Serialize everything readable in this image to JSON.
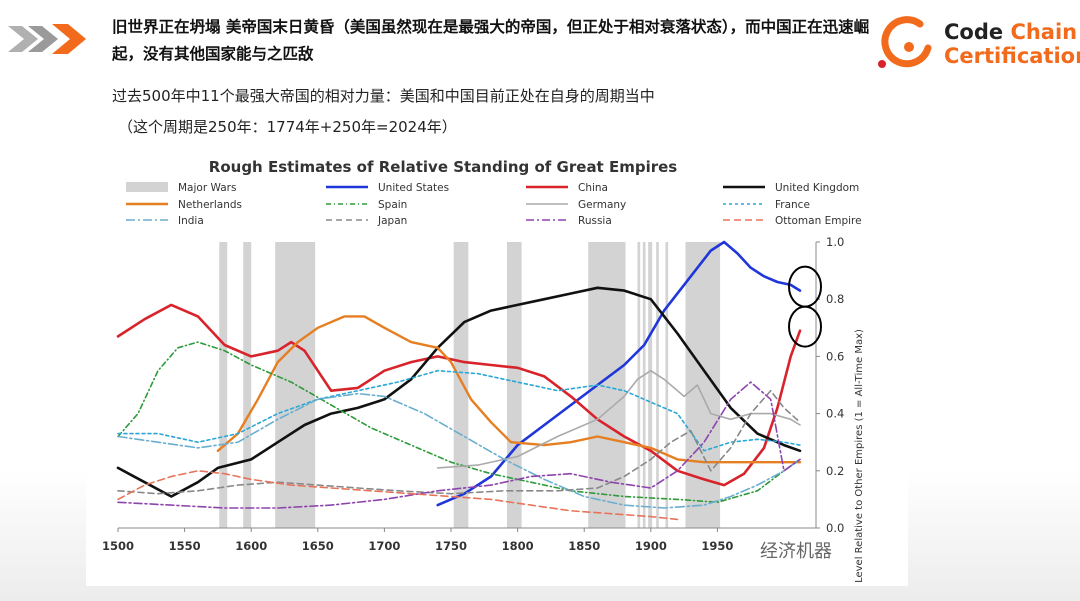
{
  "header": {
    "headline": "旧世界正在坍塌 美帝国末日黄昏（美国虽然现在是最强大的帝国，但正处于相对衰落状态），而中国正在迅速崛起，没有其他国家能与之匹敌",
    "subtitle_line1": "过去500年中11个最强大帝国的相对力量：美国和中国目前正处在自身的周期当中",
    "subtitle_line2": "（这个周期是250年：1774年+250年=2024年）"
  },
  "logo": {
    "line1_a": "Code",
    "line1_b": "Chain",
    "line2": "Certification"
  },
  "watermark": "经济机器",
  "colors": {
    "accent": "#f26a1b",
    "chevron_gray": "#9a9a9a"
  },
  "chart_data": {
    "type": "line",
    "title": "Rough Estimates of Relative Standing of Great Empires",
    "ylabel": "Level Relative to Other Empires (1 = All-Time Max)",
    "xlim": [
      1500,
      2024
    ],
    "ylim": [
      0,
      1.0
    ],
    "x_ticks": [
      1500,
      1550,
      1600,
      1650,
      1700,
      1750,
      1800,
      1850,
      1900,
      1950
    ],
    "y_ticks": [
      0.0,
      0.2,
      0.4,
      0.6,
      0.8,
      1.0
    ],
    "y_tick_labels": [
      "0.0",
      "0.2",
      "0.4",
      "0.6",
      "0.8",
      "1.0"
    ],
    "legend_placement": "top",
    "grid": false,
    "major_wars_label": "Major Wars",
    "major_wars": [
      [
        1576,
        1582
      ],
      [
        1594,
        1600
      ],
      [
        1618,
        1648
      ],
      [
        1752,
        1763
      ],
      [
        1792,
        1803
      ],
      [
        1853,
        1881
      ],
      [
        1890,
        1892
      ],
      [
        1894,
        1896
      ],
      [
        1898,
        1901
      ],
      [
        1904,
        1906
      ],
      [
        1911,
        1913
      ],
      [
        1926,
        1952
      ]
    ],
    "highlight_circles": [
      "United States",
      "China"
    ],
    "series": [
      {
        "name": "United States",
        "color": "#1f36d8",
        "dash": "solid",
        "width": 2.6,
        "points": [
          [
            1740,
            0.08
          ],
          [
            1760,
            0.12
          ],
          [
            1780,
            0.18
          ],
          [
            1800,
            0.29
          ],
          [
            1820,
            0.36
          ],
          [
            1840,
            0.43
          ],
          [
            1860,
            0.5
          ],
          [
            1880,
            0.57
          ],
          [
            1895,
            0.64
          ],
          [
            1910,
            0.76
          ],
          [
            1930,
            0.88
          ],
          [
            1945,
            0.97
          ],
          [
            1955,
            1.0
          ],
          [
            1965,
            0.96
          ],
          [
            1975,
            0.91
          ],
          [
            1985,
            0.88
          ],
          [
            1995,
            0.86
          ],
          [
            2005,
            0.85
          ],
          [
            2012,
            0.83
          ]
        ]
      },
      {
        "name": "China",
        "color": "#d8232a",
        "dash": "solid",
        "width": 2.6,
        "points": [
          [
            1500,
            0.67
          ],
          [
            1520,
            0.73
          ],
          [
            1540,
            0.78
          ],
          [
            1560,
            0.74
          ],
          [
            1580,
            0.64
          ],
          [
            1600,
            0.6
          ],
          [
            1620,
            0.62
          ],
          [
            1630,
            0.65
          ],
          [
            1640,
            0.62
          ],
          [
            1650,
            0.55
          ],
          [
            1660,
            0.48
          ],
          [
            1680,
            0.49
          ],
          [
            1700,
            0.55
          ],
          [
            1720,
            0.58
          ],
          [
            1740,
            0.6
          ],
          [
            1760,
            0.58
          ],
          [
            1780,
            0.57
          ],
          [
            1800,
            0.56
          ],
          [
            1820,
            0.53
          ],
          [
            1840,
            0.46
          ],
          [
            1860,
            0.38
          ],
          [
            1880,
            0.32
          ],
          [
            1900,
            0.27
          ],
          [
            1920,
            0.2
          ],
          [
            1940,
            0.17
          ],
          [
            1955,
            0.15
          ],
          [
            1970,
            0.19
          ],
          [
            1985,
            0.28
          ],
          [
            1995,
            0.42
          ],
          [
            2005,
            0.6
          ],
          [
            2012,
            0.69
          ]
        ]
      },
      {
        "name": "United Kingdom",
        "color": "#111111",
        "dash": "solid",
        "width": 2.6,
        "points": [
          [
            1500,
            0.21
          ],
          [
            1520,
            0.16
          ],
          [
            1540,
            0.11
          ],
          [
            1560,
            0.16
          ],
          [
            1575,
            0.21
          ],
          [
            1600,
            0.24
          ],
          [
            1620,
            0.3
          ],
          [
            1640,
            0.36
          ],
          [
            1660,
            0.4
          ],
          [
            1680,
            0.42
          ],
          [
            1700,
            0.45
          ],
          [
            1720,
            0.52
          ],
          [
            1740,
            0.63
          ],
          [
            1760,
            0.72
          ],
          [
            1780,
            0.76
          ],
          [
            1800,
            0.78
          ],
          [
            1820,
            0.8
          ],
          [
            1840,
            0.82
          ],
          [
            1860,
            0.84
          ],
          [
            1880,
            0.83
          ],
          [
            1900,
            0.8
          ],
          [
            1920,
            0.68
          ],
          [
            1940,
            0.55
          ],
          [
            1960,
            0.42
          ],
          [
            1980,
            0.33
          ],
          [
            2000,
            0.29
          ],
          [
            2012,
            0.27
          ]
        ]
      },
      {
        "name": "Netherlands",
        "color": "#e67e22",
        "dash": "solid",
        "width": 2.4,
        "points": [
          [
            1575,
            0.27
          ],
          [
            1590,
            0.33
          ],
          [
            1605,
            0.45
          ],
          [
            1620,
            0.58
          ],
          [
            1635,
            0.65
          ],
          [
            1650,
            0.7
          ],
          [
            1670,
            0.74
          ],
          [
            1685,
            0.74
          ],
          [
            1700,
            0.7
          ],
          [
            1720,
            0.65
          ],
          [
            1740,
            0.63
          ],
          [
            1750,
            0.58
          ],
          [
            1765,
            0.45
          ],
          [
            1780,
            0.37
          ],
          [
            1795,
            0.3
          ],
          [
            1820,
            0.29
          ],
          [
            1840,
            0.3
          ],
          [
            1860,
            0.32
          ],
          [
            1880,
            0.3
          ],
          [
            1900,
            0.28
          ],
          [
            1920,
            0.24
          ],
          [
            1940,
            0.23
          ],
          [
            1960,
            0.23
          ],
          [
            1980,
            0.23
          ],
          [
            2000,
            0.23
          ],
          [
            2012,
            0.23
          ]
        ]
      },
      {
        "name": "Spain",
        "color": "#2e9a3a",
        "dash": "5 3 1 3",
        "width": 1.6,
        "points": [
          [
            1500,
            0.32
          ],
          [
            1515,
            0.4
          ],
          [
            1530,
            0.55
          ],
          [
            1545,
            0.63
          ],
          [
            1560,
            0.65
          ],
          [
            1580,
            0.62
          ],
          [
            1600,
            0.57
          ],
          [
            1630,
            0.51
          ],
          [
            1660,
            0.43
          ],
          [
            1690,
            0.35
          ],
          [
            1720,
            0.29
          ],
          [
            1750,
            0.23
          ],
          [
            1780,
            0.19
          ],
          [
            1810,
            0.16
          ],
          [
            1840,
            0.13
          ],
          [
            1880,
            0.11
          ],
          [
            1920,
            0.1
          ],
          [
            1950,
            0.09
          ],
          [
            1980,
            0.13
          ],
          [
            2000,
            0.2
          ],
          [
            2012,
            0.24
          ]
        ]
      },
      {
        "name": "Germany",
        "color": "#aaaaaa",
        "dash": "solid",
        "width": 1.6,
        "points": [
          [
            1740,
            0.21
          ],
          [
            1770,
            0.22
          ],
          [
            1800,
            0.25
          ],
          [
            1830,
            0.32
          ],
          [
            1860,
            0.38
          ],
          [
            1880,
            0.46
          ],
          [
            1890,
            0.52
          ],
          [
            1900,
            0.55
          ],
          [
            1910,
            0.52
          ],
          [
            1925,
            0.46
          ],
          [
            1935,
            0.5
          ],
          [
            1945,
            0.4
          ],
          [
            1960,
            0.38
          ],
          [
            1975,
            0.4
          ],
          [
            1990,
            0.4
          ],
          [
            2005,
            0.38
          ],
          [
            2012,
            0.36
          ]
        ]
      },
      {
        "name": "France",
        "color": "#2aa7d6",
        "dash": "3 3",
        "width": 1.6,
        "points": [
          [
            1500,
            0.33
          ],
          [
            1530,
            0.33
          ],
          [
            1560,
            0.3
          ],
          [
            1590,
            0.33
          ],
          [
            1620,
            0.4
          ],
          [
            1650,
            0.45
          ],
          [
            1680,
            0.48
          ],
          [
            1710,
            0.51
          ],
          [
            1740,
            0.55
          ],
          [
            1770,
            0.54
          ],
          [
            1800,
            0.51
          ],
          [
            1830,
            0.48
          ],
          [
            1860,
            0.5
          ],
          [
            1880,
            0.48
          ],
          [
            1900,
            0.44
          ],
          [
            1920,
            0.4
          ],
          [
            1940,
            0.27
          ],
          [
            1960,
            0.3
          ],
          [
            1980,
            0.31
          ],
          [
            2000,
            0.3
          ],
          [
            2012,
            0.29
          ]
        ]
      },
      {
        "name": "India",
        "color": "#6aaecf",
        "dash": "9 3 2 3",
        "width": 1.6,
        "points": [
          [
            1500,
            0.32
          ],
          [
            1530,
            0.3
          ],
          [
            1560,
            0.28
          ],
          [
            1590,
            0.3
          ],
          [
            1620,
            0.38
          ],
          [
            1650,
            0.45
          ],
          [
            1680,
            0.47
          ],
          [
            1700,
            0.46
          ],
          [
            1730,
            0.4
          ],
          [
            1760,
            0.32
          ],
          [
            1790,
            0.24
          ],
          [
            1820,
            0.17
          ],
          [
            1850,
            0.11
          ],
          [
            1880,
            0.08
          ],
          [
            1910,
            0.07
          ],
          [
            1940,
            0.08
          ],
          [
            1960,
            0.11
          ],
          [
            1980,
            0.15
          ],
          [
            2000,
            0.2
          ],
          [
            2012,
            0.24
          ]
        ]
      },
      {
        "name": "Japan",
        "color": "#888888",
        "dash": "6 4",
        "width": 1.6,
        "points": [
          [
            1500,
            0.13
          ],
          [
            1530,
            0.12
          ],
          [
            1560,
            0.13
          ],
          [
            1590,
            0.15
          ],
          [
            1620,
            0.16
          ],
          [
            1650,
            0.15
          ],
          [
            1680,
            0.14
          ],
          [
            1710,
            0.13
          ],
          [
            1750,
            0.12
          ],
          [
            1790,
            0.13
          ],
          [
            1830,
            0.13
          ],
          [
            1860,
            0.14
          ],
          [
            1880,
            0.18
          ],
          [
            1900,
            0.24
          ],
          [
            1915,
            0.3
          ],
          [
            1930,
            0.34
          ],
          [
            1945,
            0.2
          ],
          [
            1960,
            0.28
          ],
          [
            1975,
            0.4
          ],
          [
            1990,
            0.48
          ],
          [
            2000,
            0.42
          ],
          [
            2012,
            0.37
          ]
        ]
      },
      {
        "name": "Russia",
        "color": "#8e44ad",
        "dash": "8 3 2 3",
        "width": 1.6,
        "points": [
          [
            1500,
            0.09
          ],
          [
            1540,
            0.08
          ],
          [
            1580,
            0.07
          ],
          [
            1620,
            0.07
          ],
          [
            1660,
            0.08
          ],
          [
            1700,
            0.1
          ],
          [
            1740,
            0.13
          ],
          [
            1780,
            0.15
          ],
          [
            1810,
            0.18
          ],
          [
            1840,
            0.19
          ],
          [
            1870,
            0.16
          ],
          [
            1900,
            0.14
          ],
          [
            1920,
            0.2
          ],
          [
            1940,
            0.3
          ],
          [
            1960,
            0.45
          ],
          [
            1975,
            0.51
          ],
          [
            1990,
            0.45
          ],
          [
            2000,
            0.2
          ],
          [
            2012,
            0.24
          ]
        ]
      },
      {
        "name": "Ottoman Empire",
        "color": "#e8735a",
        "dash": "7 4",
        "width": 1.6,
        "points": [
          [
            1500,
            0.1
          ],
          [
            1520,
            0.15
          ],
          [
            1540,
            0.18
          ],
          [
            1560,
            0.2
          ],
          [
            1580,
            0.19
          ],
          [
            1600,
            0.17
          ],
          [
            1630,
            0.15
          ],
          [
            1660,
            0.14
          ],
          [
            1690,
            0.13
          ],
          [
            1720,
            0.12
          ],
          [
            1750,
            0.11
          ],
          [
            1780,
            0.1
          ],
          [
            1810,
            0.08
          ],
          [
            1840,
            0.06
          ],
          [
            1870,
            0.05
          ],
          [
            1900,
            0.04
          ],
          [
            1920,
            0.03
          ]
        ]
      }
    ]
  }
}
